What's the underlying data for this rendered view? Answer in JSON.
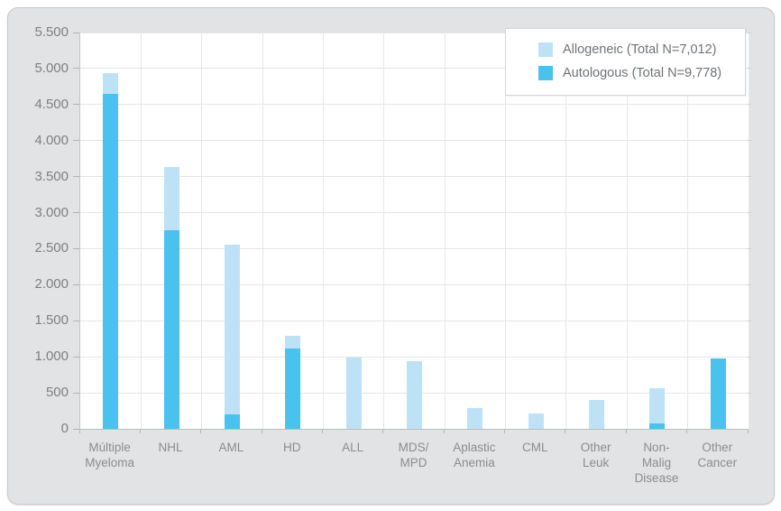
{
  "chart_data": {
    "type": "bar",
    "stacked": true,
    "title": "",
    "xlabel": "",
    "ylabel": "",
    "categories": [
      "Múltiple Myeloma",
      "NHL",
      "AML",
      "HD",
      "ALL",
      "MDS/MPD",
      "Aplastic Anemia",
      "CML",
      "Other Leuk",
      "Non-Malig Disease",
      "Other Cancer"
    ],
    "xtick_label_lines": [
      [
        "Múltiple",
        "Myeloma"
      ],
      [
        "NHL"
      ],
      [
        "AML"
      ],
      [
        "HD"
      ],
      [
        "ALL"
      ],
      [
        "MDS/",
        "MPD"
      ],
      [
        "Aplastic",
        "Anemia"
      ],
      [
        "CML"
      ],
      [
        "Other",
        "Leuk"
      ],
      [
        "Non-",
        "Malig",
        "Disease"
      ],
      [
        "Other",
        "Cancer"
      ]
    ],
    "series": [
      {
        "name": "Allogeneic",
        "legend_label": "Allogeneic (Total N=7,012)",
        "color": "#bde2f5",
        "values": [
          290,
          875,
          2350,
          180,
          990,
          945,
          285,
          207,
          395,
          495,
          0
        ]
      },
      {
        "name": "Autologous",
        "legend_label": "Autologous (Total N=9,778)",
        "color": "#4ac2ee",
        "values": [
          4650,
          2760,
          200,
          1115,
          0,
          0,
          0,
          0,
          0,
          75,
          978
        ]
      }
    ],
    "stack_bottom_series": "Autologous",
    "ylim": [
      0,
      5500
    ],
    "ytick_step": 500,
    "ytick_labels": [
      "0",
      "500",
      "1.000",
      "1.500",
      "2.000",
      "2.500",
      "3.000",
      "3.500",
      "4.000",
      "4.500",
      "5.000",
      "5.500"
    ],
    "grid": true,
    "legend_position": "top-right"
  }
}
